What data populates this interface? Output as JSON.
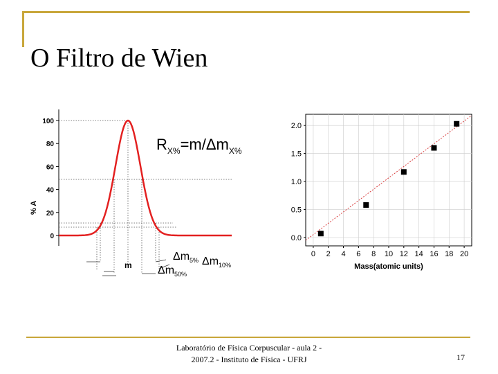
{
  "slide": {
    "title": "O Filtro de Wien",
    "footer_line1": "Laboratório de Física Corpuscular - aula 2 -",
    "footer_line2": "2007.2 - Instituto de Física - UFRJ",
    "page_number": "17",
    "accent_color": "#c8a63a"
  },
  "chart_data": [
    {
      "type": "line",
      "curve": "gaussian peak",
      "peak_x": "m",
      "peak_y": 100,
      "ylim": [
        0,
        100
      ],
      "y_ticks": [
        "100",
        "80",
        "60",
        "40",
        "20",
        "0"
      ],
      "ylabel": "% A",
      "formula": {
        "r": "R",
        "r_sub": "X%",
        "eq": "=m/Δm",
        "eq_sub": "X%"
      },
      "annotations": [
        {
          "main": "Δm",
          "sub": "5%"
        },
        {
          "main": "Δm",
          "sub": "10%"
        },
        {
          "main": "Δm",
          "sub": "50%"
        }
      ],
      "x_marker": "m",
      "line_color": "#e32020"
    },
    {
      "type": "scatter",
      "xlabel": "Mass(atomic units)",
      "x_ticks": [
        "0",
        "2",
        "4",
        "6",
        "8",
        "10",
        "12",
        "14",
        "16",
        "18",
        "20"
      ],
      "y_ticks": [
        "2.0",
        "1.5",
        "1.0",
        "0.5",
        "0.0"
      ],
      "xlim": [
        -1,
        21
      ],
      "ylim": [
        -0.15,
        2.2
      ],
      "points": [
        {
          "x": 1,
          "y": 0.07
        },
        {
          "x": 7,
          "y": 0.58
        },
        {
          "x": 12,
          "y": 1.17
        },
        {
          "x": 16,
          "y": 1.6
        },
        {
          "x": 19,
          "y": 2.03
        }
      ],
      "fit_line": {
        "x1": -1,
        "y1": -0.05,
        "x2": 21,
        "y2": 2.18
      },
      "fit_color": "#d94040"
    }
  ]
}
